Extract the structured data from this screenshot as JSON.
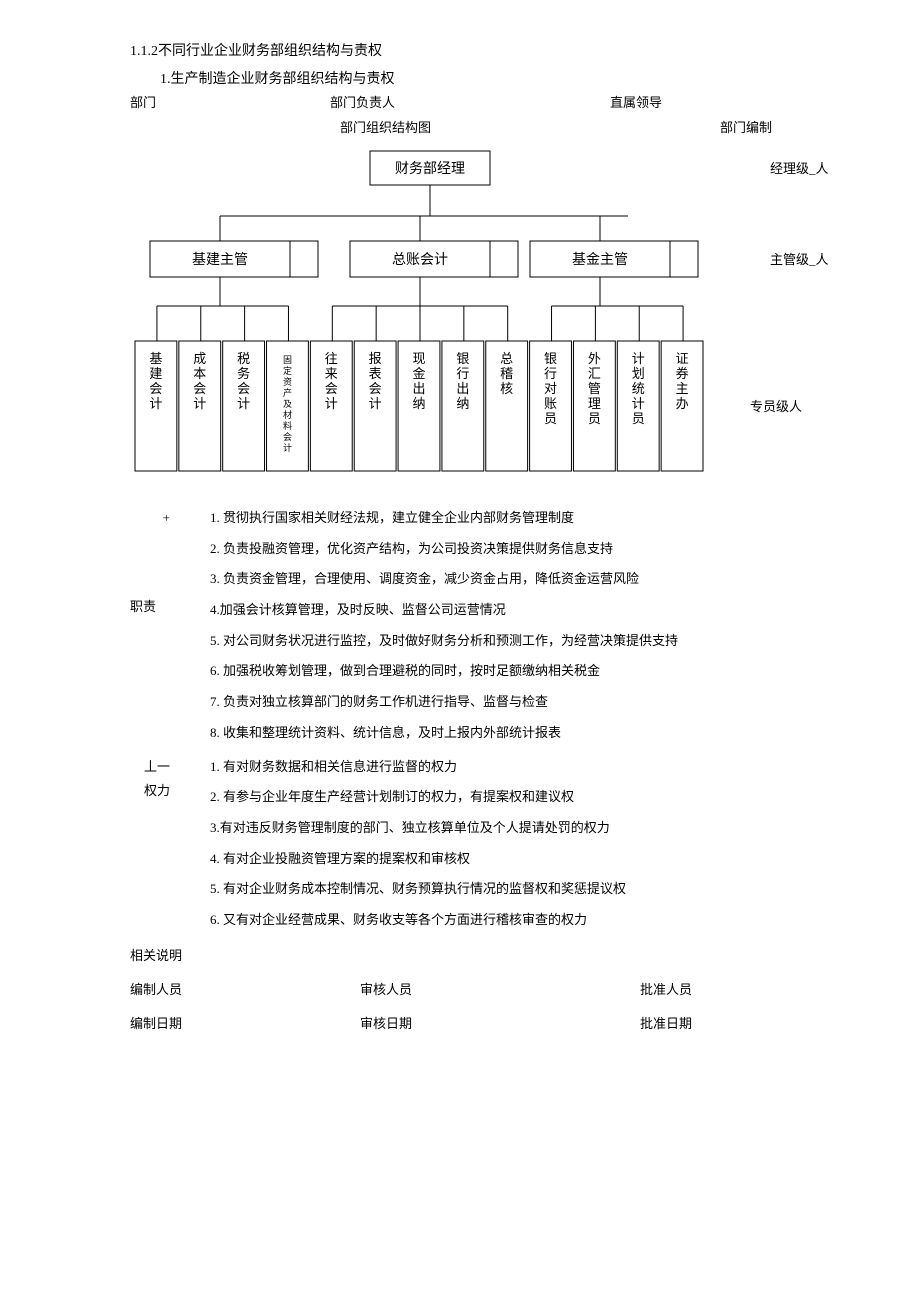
{
  "section_number": "1.1.2不同行业企业财务部组织结构与责权",
  "subsection": "1.生产制造企业财务部组织结构与责权",
  "header": {
    "dept": "部门",
    "head": "部门负责人",
    "leader": "直属领导"
  },
  "chart_row": {
    "title": "部门组织结构图",
    "staffing": "部门编制"
  },
  "org": {
    "top": "财务部经理",
    "mids": [
      "基建主管",
      "总账会计",
      "基金主管"
    ],
    "leaves": [
      "基建会计",
      "成本会计",
      "税务会计",
      "固定资产及材料会计",
      "往来会计",
      "报表会计",
      "现金出纳",
      "银行出纳",
      "总稽核",
      "银行对账员",
      "外汇管理员",
      "计划统计员",
      "证券主办"
    ],
    "right_labels": [
      "经理级_人",
      "主管级_人",
      "专员级人"
    ]
  },
  "duties_side": {
    "marker": "+",
    "label": "职责"
  },
  "duties": [
    "1. 贯彻执行国家相关财经法规，建立健全企业内部财务管理制度",
    "2. 负责投融资管理，优化资产结构，为公司投资决策提供财务信息支持",
    "3. 负责资金管理，合理使用、调度资金，减少资金占用，降低资金运营风险",
    "4.加强会计核算管理，及时反映、监督公司运营情况",
    "5. 对公司财务状况进行监控，及时做好财务分析和预测工作，为经营决策提供支持",
    "6. 加强税收筹划管理，做到合理避税的同时，按时足额缴纳相关税金",
    "7. 负责对独立核算部门的财务工作机进行指导、监督与检查",
    "8. 收集和整理统计资料、统计信息，及时上报内外部统计报表"
  ],
  "powers_side": {
    "marker": "丄一",
    "label": "权力"
  },
  "powers": [
    "1. 有对财务数据和相关信息进行监督的权力",
    "2. 有参与企业年度生产经营计划制订的权力，有提案权和建议权",
    "3.有对违反财务管理制度的部门、独立核算单位及个人提请处罚的权力",
    "4. 有对企业投融资管理方案的提案权和审核权",
    "5. 有对企业财务成本控制情况、财务预算执行情况的监督权和奖惩提议权",
    "6. 又有对企业经营成果、财务收支等各个方面进行稽核审查的权力"
  ],
  "note": "相关说明",
  "footer": {
    "r1": {
      "a": "编制人员",
      "b": "审核人员",
      "c": "批准人员"
    },
    "r2": {
      "a": "编制日期",
      "b": "审核日期",
      "c": "批准日期"
    }
  },
  "chart_style": {
    "stroke": "#000000",
    "stroke_width": 1,
    "bg": "#ffffff",
    "font_small": 8,
    "font_mid": 14,
    "font_top": 14
  }
}
